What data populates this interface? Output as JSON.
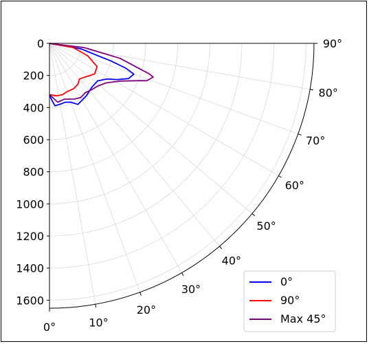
{
  "chart_data": {
    "type": "polar-line",
    "title": "",
    "angle_unit": "degrees",
    "angle_range": [
      0,
      90
    ],
    "angle_ticks": [
      0,
      10,
      20,
      30,
      40,
      50,
      60,
      70,
      80,
      90
    ],
    "angle_tick_labels": [
      "0°",
      "10°",
      "20°",
      "30°",
      "40°",
      "50°",
      "60°",
      "70°",
      "80°",
      "90°"
    ],
    "radial_range": [
      0,
      1650
    ],
    "radial_ticks": [
      0,
      200,
      400,
      600,
      800,
      1000,
      1200,
      1400,
      1600
    ],
    "radial_tick_labels": [
      "0",
      "200",
      "400",
      "600",
      "800",
      "1000",
      "1200",
      "1400",
      "1600"
    ],
    "grid": true,
    "legend_position": "bottom-right",
    "series": [
      {
        "name": "0°",
        "color": "#0000ff",
        "points": [
          [
            90,
            0
          ],
          [
            80,
            200
          ],
          [
            74,
            400
          ],
          [
            72,
            500
          ],
          [
            70,
            560
          ],
          [
            66,
            540
          ],
          [
            62,
            480
          ],
          [
            58,
            420
          ],
          [
            52,
            380
          ],
          [
            44,
            380
          ],
          [
            35,
            400
          ],
          [
            25,
            420
          ],
          [
            20,
            390
          ],
          [
            15,
            380
          ],
          [
            10,
            385
          ],
          [
            5,
            390
          ],
          [
            2,
            350
          ],
          [
            0,
            320
          ]
        ]
      },
      {
        "name": "90°",
        "color": "#ff0000",
        "points": [
          [
            90,
            0
          ],
          [
            80,
            150
          ],
          [
            72,
            250
          ],
          [
            64,
            330
          ],
          [
            56,
            340
          ],
          [
            48,
            310
          ],
          [
            40,
            290
          ],
          [
            35,
            310
          ],
          [
            28,
            320
          ],
          [
            20,
            320
          ],
          [
            14,
            330
          ],
          [
            8,
            330
          ],
          [
            0,
            320
          ]
        ]
      },
      {
        "name": "Max 45°",
        "color": "#800080",
        "points": [
          [
            90,
            0
          ],
          [
            83,
            220
          ],
          [
            78,
            450
          ],
          [
            73,
            650
          ],
          [
            72,
            680
          ],
          [
            69,
            650
          ],
          [
            68,
            620
          ],
          [
            62,
            500
          ],
          [
            55,
            430
          ],
          [
            48,
            400
          ],
          [
            42,
            390
          ],
          [
            36,
            380
          ],
          [
            30,
            390
          ],
          [
            24,
            380
          ],
          [
            15,
            360
          ],
          [
            8,
            370
          ],
          [
            2,
            330
          ],
          [
            0,
            320
          ]
        ]
      }
    ]
  }
}
